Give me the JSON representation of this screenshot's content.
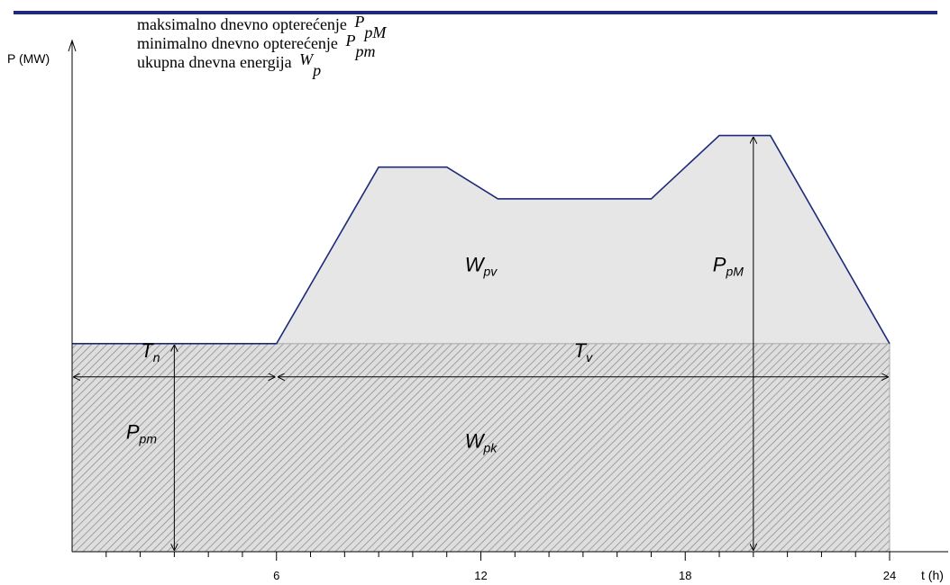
{
  "chart_data": {
    "type": "area",
    "xlabel": "t (h)",
    "ylabel": "P (MW)",
    "xlim": [
      0,
      24.3
    ],
    "ylim": [
      0,
      11.3
    ],
    "x_ticks": [
      6,
      12,
      18,
      24
    ],
    "x_minor_step": 1,
    "base_load": 4.6,
    "load_curve": {
      "x": [
        0,
        6,
        9,
        11,
        12.5,
        17,
        19,
        20.5,
        24
      ],
      "y": [
        4.6,
        4.6,
        8.5,
        8.5,
        7.8,
        7.8,
        9.2,
        9.2,
        4.6
      ]
    },
    "legend": [
      {
        "text": "maksimalno dnevno opterećenje",
        "symbol": "P",
        "sub": "pM"
      },
      {
        "text": "minimalno dnevno opterećenje",
        "symbol": "P",
        "sub": "pm"
      },
      {
        "text": "ukupna dnevna energija",
        "symbol": "W",
        "sub": "p"
      }
    ],
    "annotations": {
      "W_pv": {
        "symbol": "W",
        "sub": "pv",
        "x": 12,
        "y": 6.2
      },
      "W_pk": {
        "symbol": "W",
        "sub": "pk",
        "x": 12,
        "y": 2.3
      },
      "P_pM": {
        "symbol": "P",
        "sub": "pM",
        "x": 20,
        "y": 6.2
      },
      "P_pm": {
        "symbol": "P",
        "sub": "pm",
        "x": 2.3,
        "y": 2.5
      },
      "T_n": {
        "symbol": "T",
        "sub": "n",
        "x": 2.3,
        "y": 4.3
      },
      "T_v": {
        "symbol": "T",
        "sub": "v",
        "x": 15,
        "y": 4.3
      }
    },
    "colors": {
      "header_rule": "#1f2a7a",
      "curve": "#1f2a7a",
      "fill": "#e6e6e6",
      "hatch": "#999999"
    }
  }
}
